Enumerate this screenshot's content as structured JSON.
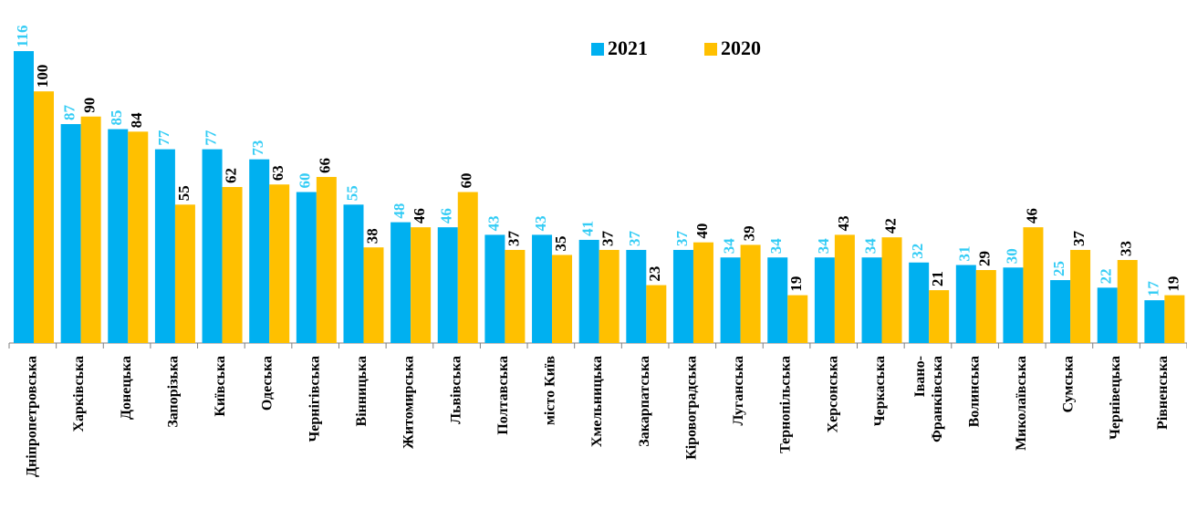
{
  "chart_data": {
    "type": "bar",
    "categories": [
      "Дніпропетровська",
      "Харківська",
      "Донецька",
      "Запорізька",
      "Київська",
      "Одеська",
      "Чернігівська",
      "Вінницька",
      "Житомирська",
      "Львівська",
      "Полтавська",
      "місто Київ",
      "Хмельницька",
      "Закарпатська",
      "Кіровоградська",
      "Луганська",
      "Тернопільська",
      "Херсонська",
      "Черкаська",
      "Івано-Франківська",
      "Волинська",
      "Миколаївська",
      "Сумська",
      "Чернівецька",
      "Рівненська"
    ],
    "series": [
      {
        "name": "2021",
        "color": "#00b0f0",
        "label_color": "#33ccf5",
        "values": [
          116,
          87,
          85,
          77,
          77,
          73,
          60,
          55,
          48,
          46,
          43,
          43,
          41,
          37,
          37,
          34,
          34,
          34,
          34,
          32,
          31,
          30,
          25,
          22,
          17
        ]
      },
      {
        "name": "2020",
        "color": "#ffc000",
        "label_color": "#000000",
        "values": [
          100,
          90,
          84,
          55,
          62,
          63,
          66,
          38,
          46,
          60,
          37,
          35,
          37,
          23,
          40,
          39,
          19,
          43,
          42,
          21,
          29,
          46,
          37,
          33,
          19
        ]
      }
    ],
    "ylim": [
      0,
      120
    ]
  }
}
